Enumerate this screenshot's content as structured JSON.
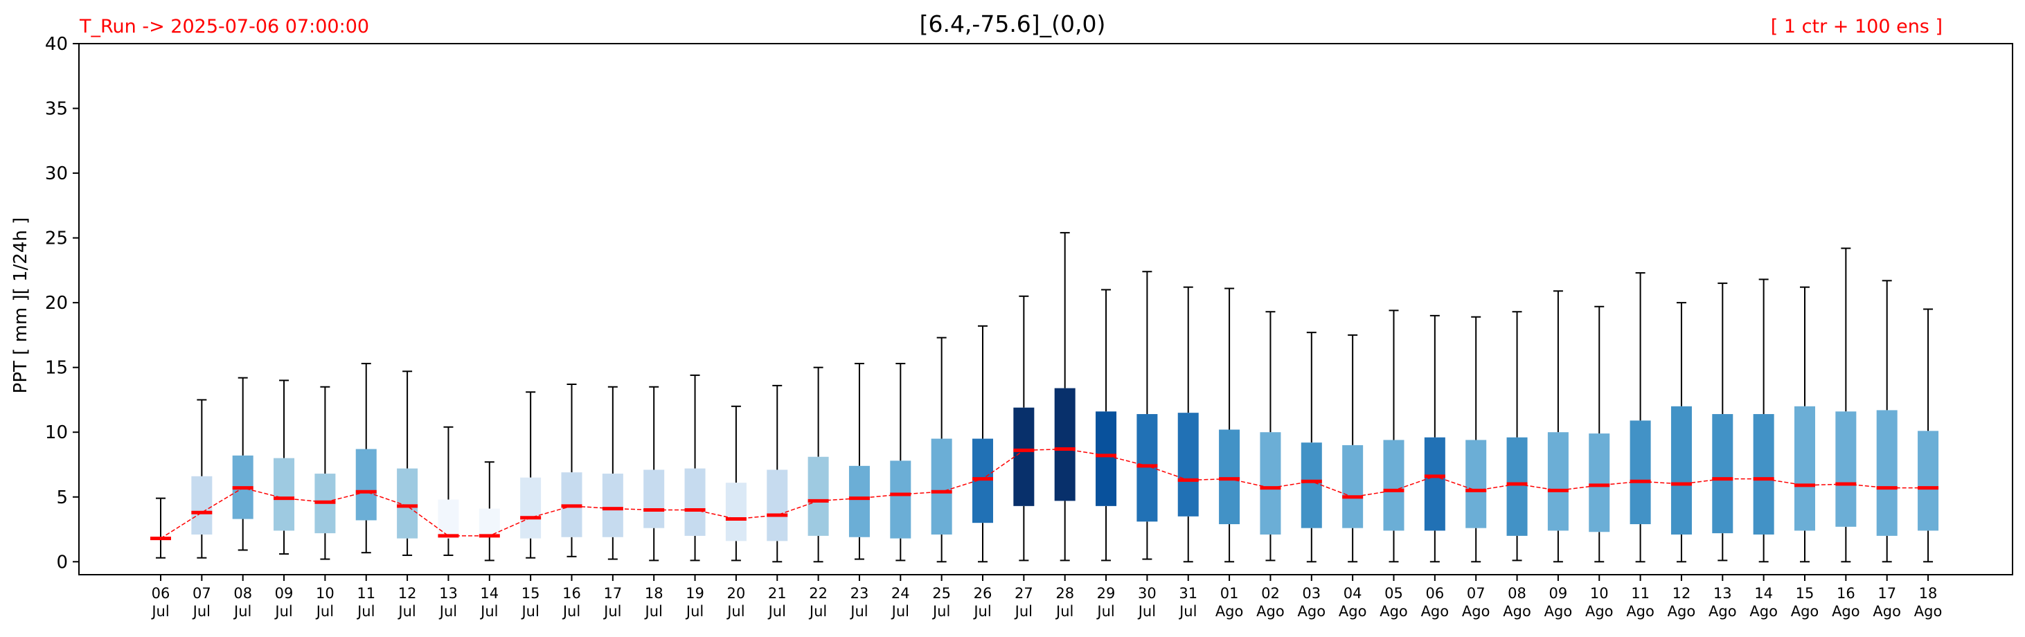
{
  "header": {
    "run_label": "T_Run -> 2025-07-06  07:00:00",
    "title": "[6.4,-75.6]_(0,0)",
    "ensemble_label": "[ 1 ctr + 100 ens ]"
  },
  "colors": {
    "run_label": "#ff0000",
    "ensemble_label": "#ff0000",
    "median": "#ff0000",
    "mean_line": "#ff0000",
    "whisker": "#000000",
    "box_palette": [
      "#f2f7fd",
      "#dbe9f6",
      "#c6dbef",
      "#9ecae1",
      "#6baed6",
      "#4292c6",
      "#2171b5",
      "#08519c",
      "#08306b"
    ]
  },
  "chart_data": {
    "type": "box",
    "title": "[6.4,-75.6]_(0,0)",
    "ylabel": "PPT  [ mm ][ 1/24h ]",
    "xlabel": "",
    "ylim": [
      -1,
      40
    ],
    "yticks": [
      0,
      5,
      10,
      15,
      20,
      25,
      30,
      35,
      40
    ],
    "grid": false,
    "categories": [
      [
        "06",
        "Jul"
      ],
      [
        "07",
        "Jul"
      ],
      [
        "08",
        "Jul"
      ],
      [
        "09",
        "Jul"
      ],
      [
        "10",
        "Jul"
      ],
      [
        "11",
        "Jul"
      ],
      [
        "12",
        "Jul"
      ],
      [
        "13",
        "Jul"
      ],
      [
        "14",
        "Jul"
      ],
      [
        "15",
        "Jul"
      ],
      [
        "16",
        "Jul"
      ],
      [
        "17",
        "Jul"
      ],
      [
        "18",
        "Jul"
      ],
      [
        "19",
        "Jul"
      ],
      [
        "20",
        "Jul"
      ],
      [
        "21",
        "Jul"
      ],
      [
        "22",
        "Jul"
      ],
      [
        "23",
        "Jul"
      ],
      [
        "24",
        "Jul"
      ],
      [
        "25",
        "Jul"
      ],
      [
        "26",
        "Jul"
      ],
      [
        "27",
        "Jul"
      ],
      [
        "28",
        "Jul"
      ],
      [
        "29",
        "Jul"
      ],
      [
        "30",
        "Jul"
      ],
      [
        "31",
        "Jul"
      ],
      [
        "01",
        "Ago"
      ],
      [
        "02",
        "Ago"
      ],
      [
        "03",
        "Ago"
      ],
      [
        "04",
        "Ago"
      ],
      [
        "05",
        "Ago"
      ],
      [
        "06",
        "Ago"
      ],
      [
        "07",
        "Ago"
      ],
      [
        "08",
        "Ago"
      ],
      [
        "09",
        "Ago"
      ],
      [
        "10",
        "Ago"
      ],
      [
        "11",
        "Ago"
      ],
      [
        "12",
        "Ago"
      ],
      [
        "13",
        "Ago"
      ],
      [
        "14",
        "Ago"
      ],
      [
        "15",
        "Ago"
      ],
      [
        "16",
        "Ago"
      ],
      [
        "17",
        "Ago"
      ],
      [
        "18",
        "Ago"
      ]
    ],
    "whisker_low": [
      0.3,
      0.3,
      0.9,
      0.6,
      0.2,
      0.7,
      0.5,
      0.5,
      0.1,
      0.3,
      0.4,
      0.2,
      0.1,
      0.1,
      0.1,
      0.0,
      0.0,
      0.2,
      0.1,
      0.0,
      0.0,
      0.1,
      0.1,
      0.1,
      0.2,
      0.0,
      0.0,
      0.1,
      0.0,
      0.0,
      0.0,
      0.0,
      0.0,
      0.1,
      0.0,
      0.0,
      0.0,
      0.0,
      0.1,
      0.0,
      0.0,
      0.0,
      0.0,
      0.0
    ],
    "q1": [
      1.7,
      2.1,
      3.3,
      2.4,
      2.2,
      3.2,
      1.8,
      1.8,
      1.9,
      1.8,
      1.9,
      1.9,
      2.6,
      2.0,
      1.6,
      1.6,
      2.0,
      1.9,
      1.8,
      2.1,
      3.0,
      4.3,
      4.7,
      4.3,
      3.1,
      3.5,
      2.9,
      2.1,
      2.6,
      2.6,
      2.4,
      2.4,
      2.6,
      2.0,
      2.4,
      2.3,
      2.9,
      2.1,
      2.2,
      2.1,
      2.4,
      2.7,
      2.0,
      2.4
    ],
    "median": [
      1.8,
      3.8,
      5.7,
      4.9,
      4.6,
      5.4,
      4.3,
      2.0,
      2.0,
      3.4,
      4.3,
      4.1,
      4.0,
      4.0,
      3.3,
      3.6,
      4.7,
      4.9,
      5.2,
      5.4,
      6.4,
      8.6,
      8.7,
      8.2,
      7.4,
      6.3,
      6.4,
      5.7,
      6.2,
      5.0,
      5.5,
      6.6,
      5.5,
      6.0,
      5.5,
      5.9,
      6.2,
      6.0,
      6.4,
      6.4,
      5.9,
      6.0,
      5.7,
      5.7
    ],
    "q3": [
      1.9,
      6.6,
      8.2,
      8.0,
      6.8,
      8.7,
      7.2,
      4.8,
      4.1,
      6.5,
      6.9,
      6.8,
      7.1,
      7.2,
      6.1,
      7.1,
      8.1,
      7.4,
      7.8,
      9.5,
      9.5,
      11.9,
      13.4,
      11.6,
      11.4,
      11.5,
      10.2,
      10.0,
      9.2,
      9.0,
      9.4,
      9.6,
      9.4,
      9.6,
      10.0,
      9.9,
      10.9,
      12.0,
      11.4,
      11.4,
      12.0,
      11.6,
      11.7,
      10.1
    ],
    "whisker_high": [
      4.9,
      12.5,
      14.2,
      14.0,
      13.5,
      15.3,
      14.7,
      10.4,
      7.7,
      13.1,
      13.7,
      13.5,
      13.5,
      14.4,
      12.0,
      13.6,
      15.0,
      15.3,
      15.3,
      17.3,
      18.2,
      20.5,
      25.4,
      21.0,
      22.4,
      21.2,
      21.1,
      19.3,
      17.7,
      17.5,
      19.4,
      19.0,
      18.9,
      19.3,
      20.9,
      19.7,
      22.3,
      20.0,
      21.5,
      21.8,
      21.2,
      24.2,
      21.7,
      19.5
    ],
    "box_color_index": [
      2,
      2,
      4,
      3,
      3,
      4,
      3,
      0,
      0,
      1,
      2,
      2,
      2,
      2,
      1,
      2,
      3,
      4,
      4,
      4,
      6,
      8,
      8,
      7,
      6,
      6,
      5,
      4,
      5,
      4,
      4,
      6,
      4,
      5,
      4,
      4,
      5,
      5,
      5,
      5,
      4,
      4,
      4,
      4
    ]
  }
}
